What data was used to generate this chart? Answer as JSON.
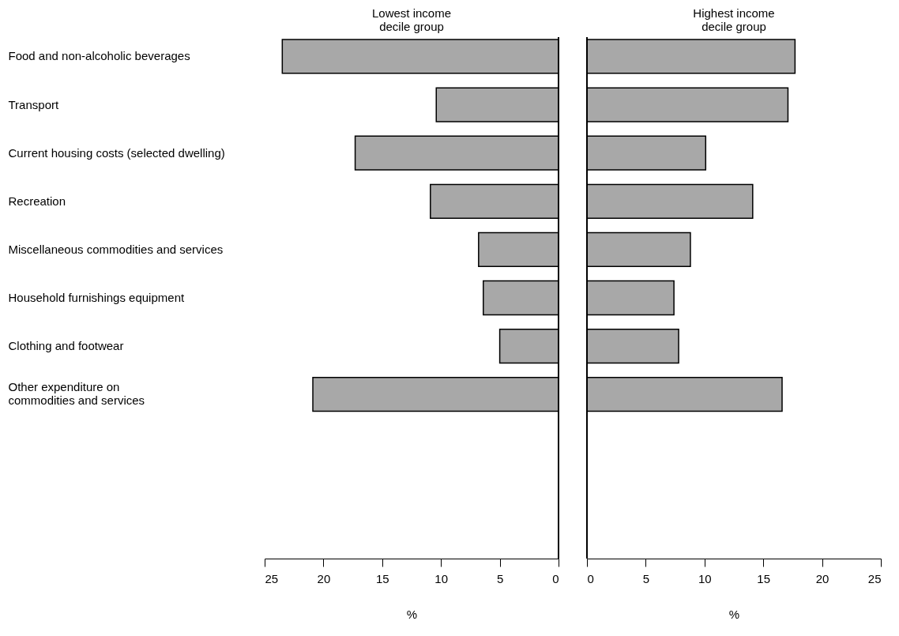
{
  "chart_data": [
    {
      "type": "bar",
      "orientation": "horizontal",
      "title": "Lowest income decile group",
      "xlabel": "%",
      "categories": [
        "Food and non-alcoholic beverages",
        "Transport",
        "Current housing costs (selected dwelling)",
        "Recreation",
        "Miscellaneous commodities and services",
        "Household furnishings equipment",
        "Clothing and footwear",
        "Other expenditure on commodities and services",
        null,
        null,
        null
      ],
      "values": [
        23.5,
        10.4,
        17.3,
        10.9,
        6.8,
        6.4,
        5.0,
        20.9,
        null,
        null,
        null
      ],
      "color": "#a8a8a8",
      "xlim": [
        25,
        0
      ],
      "xticks": [
        25,
        20,
        15,
        10,
        5,
        0
      ],
      "grid": false
    },
    {
      "type": "bar",
      "orientation": "horizontal",
      "title": "Highest income decile group",
      "xlabel": "%",
      "categories": [
        null,
        null,
        null,
        null,
        null,
        null,
        null,
        null,
        null,
        null,
        null
      ],
      "values": [
        17.7,
        17.1,
        10.1,
        14.1,
        8.8,
        7.4,
        7.8,
        16.6,
        null,
        null,
        null
      ],
      "color": "#a8a8a8",
      "xlim": [
        0,
        25
      ],
      "xticks": [
        0,
        5,
        10,
        15,
        20,
        25
      ],
      "grid": false,
      "tick_labels": "x"
    }
  ]
}
